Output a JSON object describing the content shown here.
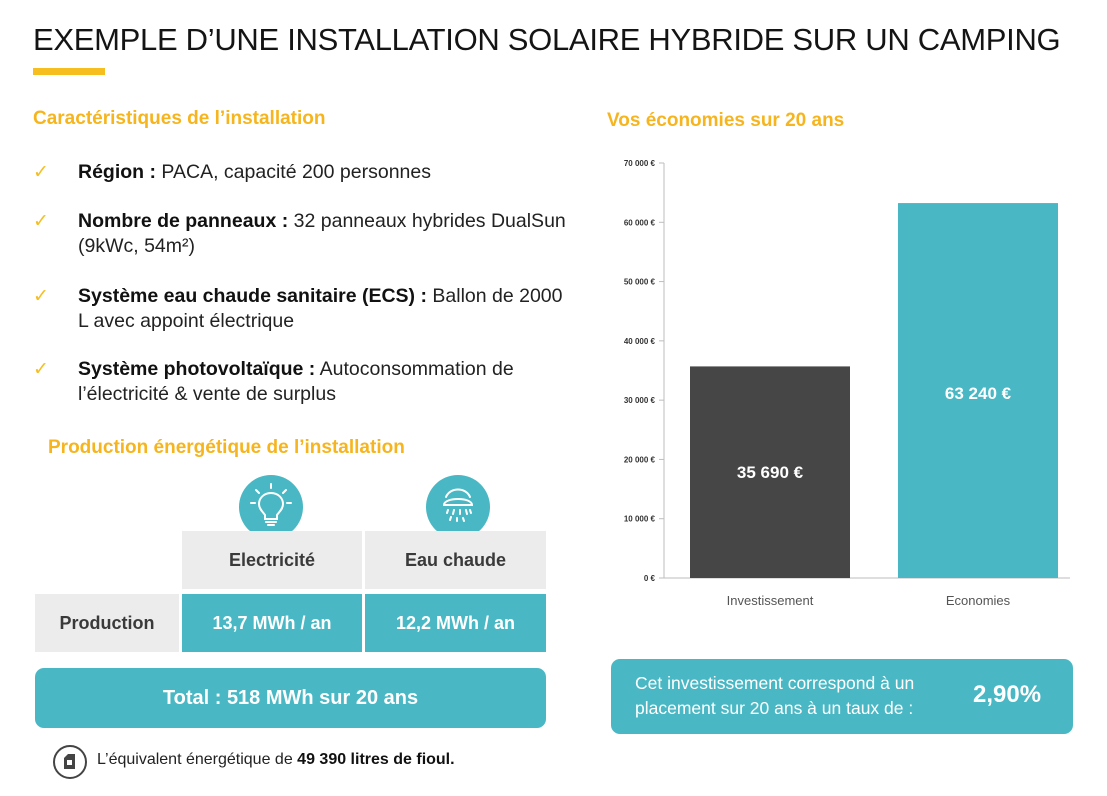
{
  "title": "EXEMPLE D’UNE INSTALLATION SOLAIRE HYBRIDE SUR UN CAMPING",
  "colors": {
    "accent": "#f6be1f",
    "teal": "#49b8c4",
    "dark_bar": "#464646",
    "grey_cell": "#ececec"
  },
  "characteristics": {
    "heading": "Caractéristiques de l’installation",
    "items": [
      {
        "label": "Région :",
        "text": "PACA, capacité 200 personnes"
      },
      {
        "label": "Nombre de panneaux :",
        "text": "32 panneaux hybrides DualSun (9kWc, 54m²)"
      },
      {
        "label": "Système eau chaude sanitaire (ECS) :",
        "text": "Ballon de 2000 L avec appoint électrique"
      },
      {
        "label": "Système photovoltaïque :",
        "text": "Autoconsommation de l’électricité & vente de surplus"
      }
    ]
  },
  "production": {
    "heading": "Production énergétique de l’installation",
    "icons": [
      "lightbulb-icon",
      "shower-icon"
    ],
    "col_electricity": "Electricité",
    "col_hot_water": "Eau chaude",
    "row_label": "Production",
    "electricity_value": "13,7 MWh / an",
    "hot_water_value": "12,2 MWh / an",
    "total": "Total : 518 MWh sur 20 ans",
    "fuel_prefix": "L’équivalent énergétique de",
    "fuel_value": "49 390 litres de fioul."
  },
  "savings": {
    "heading": "Vos économies sur 20 ans",
    "invest_text": "Cet investissement correspond à un placement sur 20 ans à un taux de :",
    "rate": "2,90%"
  },
  "chart_data": {
    "type": "bar",
    "title": "",
    "xlabel": "",
    "ylabel": "",
    "categories": [
      "Investissement",
      "Economies"
    ],
    "values": [
      35690,
      63240
    ],
    "data_labels": [
      "35 690 €",
      "63 240 €"
    ],
    "bar_colors": [
      "#464646",
      "#49b8c4"
    ],
    "ylim": [
      0,
      70000
    ],
    "yticks": [
      0,
      10000,
      20000,
      30000,
      40000,
      50000,
      60000,
      70000
    ],
    "ytick_labels": [
      "0 €",
      "10 000 €",
      "20 000 €",
      "30 000 €",
      "40 000 €",
      "50 000 €",
      "60 000 €",
      "70 000 €"
    ],
    "grid": false,
    "legend": "none"
  }
}
